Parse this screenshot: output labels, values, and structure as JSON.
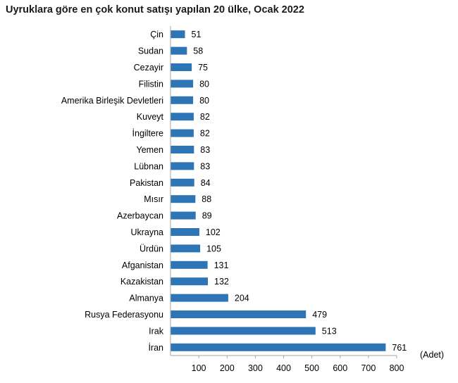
{
  "chart_data": {
    "type": "bar",
    "orientation": "horizontal",
    "title": "Uyruklara göre en çok konut satışı yapılan 20 ülke, Ocak 2022",
    "unit_label": "(Adet)",
    "categories": [
      "Çin",
      "Sudan",
      "Cezayir",
      "Filistin",
      "Amerika Birleşik Devletleri",
      "Kuveyt",
      "İngiltere",
      "Yemen",
      "Lübnan",
      "Pakistan",
      "Mısır",
      "Azerbaycan",
      "Ukrayna",
      "Ürdün",
      "Afganistan",
      "Kazakistan",
      "Almanya",
      "Rusya Federasyonu",
      "Irak",
      "İran"
    ],
    "values": [
      51,
      58,
      75,
      80,
      80,
      82,
      82,
      83,
      83,
      84,
      88,
      89,
      102,
      105,
      131,
      132,
      204,
      479,
      513,
      761
    ],
    "xlim": [
      0,
      800
    ],
    "xticks": [
      100,
      200,
      300,
      400,
      500,
      600,
      700,
      800
    ],
    "grid": false,
    "bar_color": "#2e75b6",
    "axis_color": "#a6a6a6"
  }
}
